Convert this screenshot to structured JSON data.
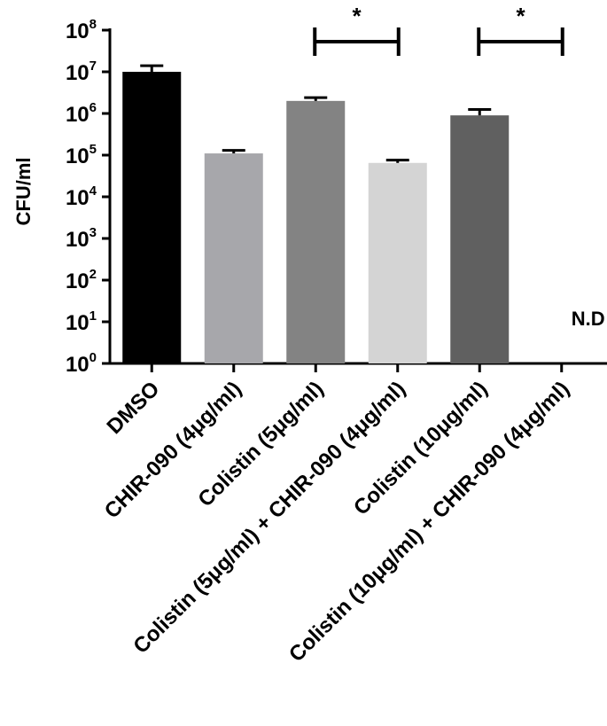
{
  "chart_data": {
    "type": "bar",
    "yscale": "log",
    "ylabel": "CFU/ml",
    "ylim": [
      1,
      100000000
    ],
    "y_tick_base": "10",
    "y_tick_exponents": [
      "0",
      "1",
      "2",
      "3",
      "4",
      "5",
      "6",
      "7",
      "8"
    ],
    "categories": [
      "DMSO",
      "CHIR-090 (4μg/ml)",
      "Colistin (5μg/ml)",
      "Colistin (5μg/ml) + CHIR-090 (4μg/ml)",
      "Colistin (10μg/ml)",
      "Colistin (10μg/ml) + CHIR-090 (4μg/ml)"
    ],
    "values": [
      10000000,
      110000,
      2000000,
      65000,
      900000,
      null
    ],
    "error_upper": [
      14000000,
      130000,
      2400000,
      76000,
      1250000,
      null
    ],
    "bar_colors": [
      "#000000",
      "#a7a7ab",
      "#838383",
      "#d4d4d4",
      "#606060",
      null
    ],
    "annotations": [
      {
        "category_index": 5,
        "text": "N.D"
      }
    ],
    "significance": [
      {
        "from": 2,
        "to": 3,
        "label": "*"
      },
      {
        "from": 4,
        "to": 5,
        "label": "*"
      }
    ],
    "grid": false,
    "legend": "none"
  }
}
